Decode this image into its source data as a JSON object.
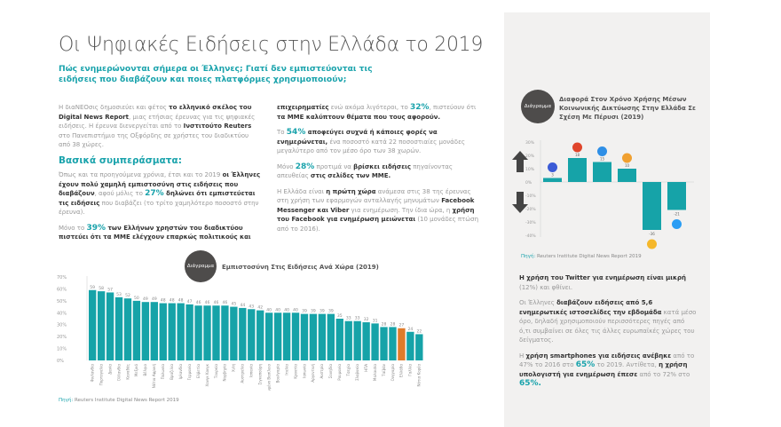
{
  "title": "Οι Ψηφιακές Ειδήσεις στην Ελλάδα το 2019",
  "subtitle": "Πώς ενημερώνονται σήμερα οι Έλληνες; Γιατί δεν εμπιστεύονται τις ειδήσεις που διαβάζουν και ποιες πλατφόρμες χρησιμοποιούν;",
  "section_heading": "Βασικά συμπεράσματα:",
  "col1": [
    [
      [
        "n",
        "Η διαΝΕΟσις δημοσιεύει και φέτος "
      ],
      [
        "b",
        "το ελληνικό σκέλος του Digital News Report"
      ],
      [
        "n",
        ", μιας ετήσιας έρευνας για τις ψηφιακές ειδήσεις. Η έρευνα διενεργείται από το "
      ],
      [
        "b",
        "Ινστιτούτο Reuters"
      ],
      [
        "n",
        " στο Πανεπιστήμιο της Οξφόρδης σε χρήστες του διαδικτύου από 38 χώρες."
      ]
    ]
  ],
  "col1b": [
    [
      [
        "n",
        "Όπως και τα προηγούμενα χρόνια, έτσι και το 2019 "
      ],
      [
        "b",
        "οι Έλληνες έχουν πολύ χαμηλή εμπιστοσύνη στις ειδήσεις που διαβάζουν"
      ],
      [
        "n",
        ", αφού μόλις το "
      ],
      [
        "h",
        "27%"
      ],
      [
        "b",
        " δηλώνει ότι εμπιστεύεται τις ειδήσεις"
      ],
      [
        "n",
        " που διαβάζει (το τρίτο χαμηλότερο ποσοστό στην έρευνα)."
      ]
    ],
    [
      [
        "n",
        "Μόνο το "
      ],
      [
        "h",
        "39%"
      ],
      [
        "b",
        " των Ελλήνων χρηστών του διαδικτύου πιστεύει ότι τα ΜΜΕ ελέγχουν επαρκώς πολιτικούς και"
      ]
    ]
  ],
  "col2": [
    [
      [
        "b",
        "επιχειρηματίες"
      ],
      [
        "n",
        " ενώ ακόμα λιγότεροι, το "
      ],
      [
        "h",
        "32%"
      ],
      [
        "n",
        ", πιστεύουν ότι "
      ],
      [
        "b",
        "τα ΜΜΕ καλύπτουν θέματα που τους αφορούν."
      ]
    ],
    [
      [
        "n",
        "Το "
      ],
      [
        "h",
        "54%"
      ],
      [
        "b",
        " αποφεύγει συχνά ή κάποιες φορές να ενημερώνεται,"
      ],
      [
        "n",
        " ένα ποσοστό κατά 22 ποσοστιαίες μονάδες μεγαλύτερο από τον μέσο όρο των 38 χωρών."
      ]
    ],
    [
      [
        "n",
        "Μόνο "
      ],
      [
        "h",
        "28%"
      ],
      [
        "n",
        " προτιμά να "
      ],
      [
        "b",
        "βρίσκει ειδήσεις"
      ],
      [
        "n",
        " πηγαίνοντας απευθείας "
      ],
      [
        "b",
        "στις σελίδες των ΜΜΕ."
      ]
    ],
    [
      [
        "n",
        "Η Ελλάδα είναι "
      ],
      [
        "b",
        "η πρώτη χώρα"
      ],
      [
        "n",
        " ανάμεσα στις 38 της έρευνας στη χρήση των εφαρμογών ανταλλαγής μηνυμάτων "
      ],
      [
        "b",
        "Facebook Messenger και Viber"
      ],
      [
        "n",
        " για ενημέρωση. Την ίδια ώρα, η "
      ],
      [
        "b",
        "χρήση του Facebook για ενημέρωση μειώνεται"
      ],
      [
        "n",
        " (10 μονάδες πτώση από το 2016)."
      ]
    ]
  ],
  "col3": [
    [
      [
        "b",
        "Η χρήση του Twitter για ενημέρωση είναι μικρή"
      ],
      [
        "n",
        " (12%) και φθίνει."
      ]
    ],
    [
      [
        "n",
        "Οι Έλληνες "
      ],
      [
        "b",
        "διαβάζουν ειδήσεις από 5,6 ενημερωτικές ιστοσελίδες την εβδομάδα"
      ],
      [
        "n",
        " κατά μέσο όρο, δηλαδή χρησιμοποιούν περισσότερες πηγές από ό,τι συμβαίνει σε όλες τις άλλες ευρωπαϊκές χώρες του δείγματος."
      ]
    ],
    [
      [
        "n",
        "Η "
      ],
      [
        "b",
        "χρήση smartphones για ειδήσεις ανέβηκε"
      ],
      [
        "n",
        " από το 47% το 2016 στο "
      ],
      [
        "h",
        "65%"
      ],
      [
        "n",
        " το 2019. Αντίθετα, "
      ],
      [
        "b",
        "η χρήση υπολογιστή για ενημέρωση έπεσε"
      ],
      [
        "n",
        " από το 72% στο "
      ],
      [
        "h",
        "65%."
      ]
    ]
  ],
  "badge_label": "Διάγραμμα",
  "source_label": "Πηγή:",
  "source_text": "Reuters Institute Digital News Report 2019",
  "colors": {
    "teal": "#16a3a8",
    "orange": "#e07b2a",
    "highlight": "#1aa3ac"
  },
  "chart_data": [
    {
      "type": "bar",
      "title": "Εμπιστοσύνη Στις Ειδήσεις Ανά Χώρα (2019)",
      "ylim": [
        0,
        70
      ],
      "yticks": [
        "0%",
        "10%",
        "20%",
        "30%",
        "40%",
        "50%",
        "60%",
        "70%"
      ],
      "highlight": "Ελλάδα",
      "categories": [
        "Φινλανδία",
        "Πορτογαλία",
        "Δανία",
        "Ολλανδία",
        "Καναδάς",
        "Μεξικό",
        "Βέλγιο",
        "Νότια Αφρική",
        "Πολωνία",
        "Βραζιλία",
        "Ιρλανδία",
        "Γερμανία",
        "Ελβετία",
        "Χονγκ Κονγκ",
        "Τουρκία",
        "Νορβηγία",
        "Χιλή",
        "Αυστραλία",
        "Ισπανία",
        "Σιγκαπούρη",
        "Ηνωμένο Βασίλειο",
        "Βουλγαρία",
        "Ιταλία",
        "Κροατία",
        "Ιαπωνία",
        "Αργεντινή",
        "Αυστρία",
        "Σουηδία",
        "Ρουμανία",
        "Τσεχία",
        "Σλοβακία",
        "ΗΠΑ",
        "Μαλαισία",
        "Ταϊβάν",
        "Ουγγαρία",
        "Ελλάδα",
        "Γαλλία",
        "Νότια Κορέα"
      ],
      "values": [
        59,
        58,
        57,
        53,
        52,
        50,
        49,
        49,
        48,
        48,
        48,
        47,
        46,
        46,
        46,
        46,
        45,
        44,
        43,
        42,
        40,
        40,
        40,
        40,
        39,
        39,
        39,
        39,
        35,
        33,
        33,
        32,
        31,
        28,
        28,
        27,
        24,
        22
      ]
    },
    {
      "type": "bar",
      "title": "Διαφορά Στον Χρόνο Χρήσης Μέσων Κοινωνικής Δικτύωσης Στην Ελλάδα Σε Σχέση Με Πέρυσι (2019)",
      "ylim": [
        -40,
        30
      ],
      "yticks": [
        "-40%",
        "-30%",
        "-20%",
        "-10%",
        "0%",
        "10%",
        "20%",
        "30%"
      ],
      "categories": [
        "facebook-icon",
        "youtube-icon",
        "messenger-icon",
        "instagram-icon",
        "snapchat-icon",
        "twitter-icon"
      ],
      "icon_colors": [
        "#3b5bd6",
        "#e0452b",
        "#2f8fe6",
        "#f0a030",
        "#f5b72a",
        "#2a9df4"
      ],
      "values": [
        3,
        18,
        15,
        10,
        -36,
        -21
      ]
    }
  ]
}
